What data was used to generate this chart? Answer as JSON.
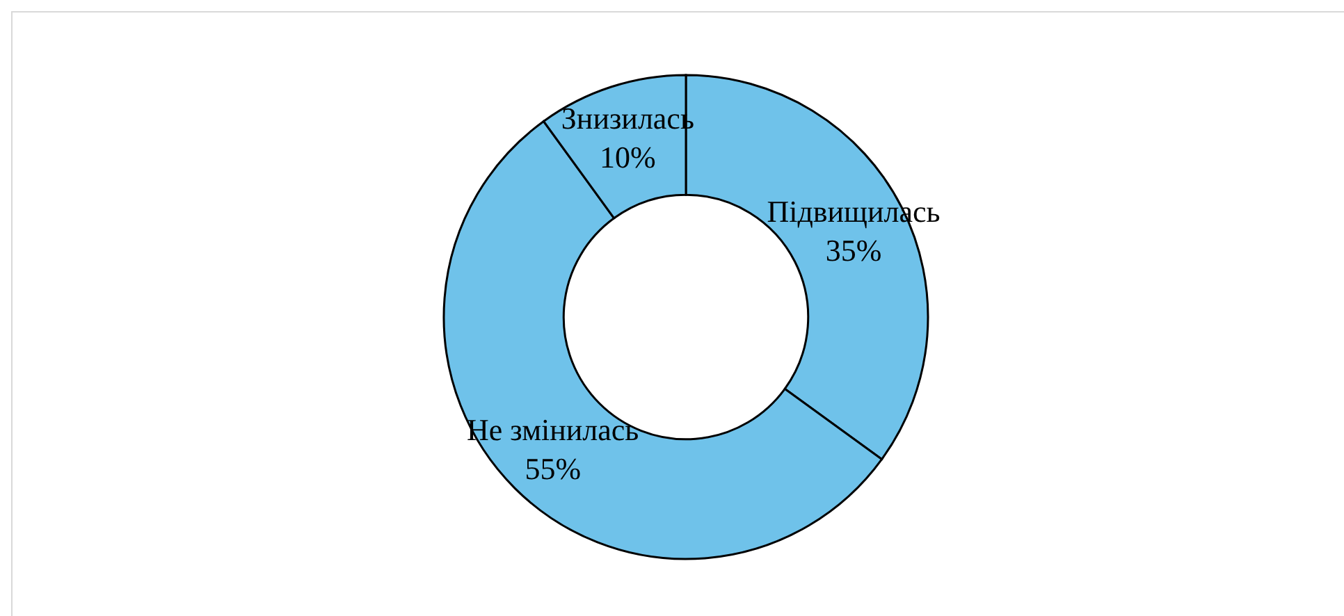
{
  "chart_data": {
    "type": "donut",
    "categories": [
      "Підвищилась",
      "Не змінилась",
      "Знизилась"
    ],
    "values": [
      35,
      55,
      10
    ],
    "colors": [
      "#6fc2ea",
      "#6fc2ea",
      "#6fc2ea"
    ],
    "value_labels": [
      "35%",
      "55%",
      "10%"
    ]
  }
}
